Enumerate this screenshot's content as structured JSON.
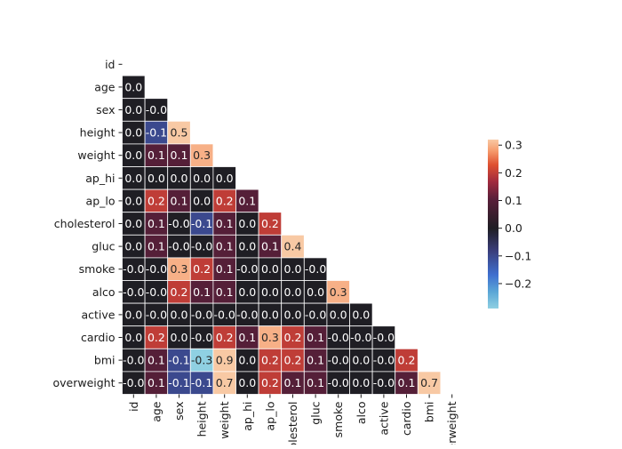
{
  "chart_data": {
    "type": "heatmap",
    "title": "",
    "xlabel": "",
    "ylabel": "",
    "variables": [
      "id",
      "age",
      "sex",
      "height",
      "weight",
      "ap_hi",
      "ap_lo",
      "cholesterol",
      "gluc",
      "smoke",
      "alco",
      "active",
      "cardio",
      "bmi",
      "overweight"
    ],
    "x_tick_labels": [
      "id",
      "age",
      "sex",
      "height",
      "weight",
      "ap_hi",
      "ap_lo",
      "cholesterol",
      "gluc",
      "smoke",
      "alco",
      "active",
      "cardio",
      "bmi",
      "overweight"
    ],
    "mask": "upper-triangle-including-diagonal",
    "value_range": [
      -0.29,
      0.32
    ],
    "center": 0.0,
    "colormap": "icefire",
    "colorbar": {
      "ticks": [
        "−0.2",
        "−0.1",
        "0.0",
        "0.1",
        "0.2",
        "0.3"
      ],
      "tick_values": [
        -0.2,
        -0.1,
        0.0,
        0.1,
        0.2,
        0.3
      ]
    },
    "grid_lines": "white",
    "values": [
      [],
      [
        0.0
      ],
      [
        0.0,
        -0.0
      ],
      [
        0.0,
        -0.1,
        0.5
      ],
      [
        0.0,
        0.1,
        0.1,
        0.3
      ],
      [
        0.0,
        0.0,
        0.0,
        0.0,
        0.0
      ],
      [
        0.0,
        0.2,
        0.1,
        0.0,
        0.2,
        0.1
      ],
      [
        0.0,
        0.1,
        -0.0,
        -0.1,
        0.1,
        0.0,
        0.2
      ],
      [
        0.0,
        0.1,
        -0.0,
        -0.0,
        0.1,
        0.0,
        0.1,
        0.4
      ],
      [
        -0.0,
        -0.0,
        0.3,
        0.2,
        0.1,
        -0.0,
        0.0,
        0.0,
        -0.0
      ],
      [
        -0.0,
        -0.0,
        0.2,
        0.1,
        0.1,
        0.0,
        0.0,
        0.0,
        0.0,
        0.3
      ],
      [
        0.0,
        -0.0,
        0.0,
        -0.0,
        -0.0,
        -0.0,
        0.0,
        0.0,
        -0.0,
        0.0,
        0.0
      ],
      [
        0.0,
        0.2,
        0.0,
        -0.0,
        0.2,
        0.1,
        0.3,
        0.2,
        0.1,
        -0.0,
        -0.0,
        -0.0
      ],
      [
        -0.0,
        0.1,
        -0.1,
        -0.3,
        0.9,
        0.0,
        0.2,
        0.2,
        0.1,
        -0.0,
        0.0,
        -0.0,
        0.2
      ],
      [
        -0.0,
        0.1,
        -0.1,
        -0.1,
        0.7,
        0.0,
        0.2,
        0.1,
        0.1,
        -0.0,
        0.0,
        -0.0,
        0.1,
        0.7
      ]
    ]
  }
}
